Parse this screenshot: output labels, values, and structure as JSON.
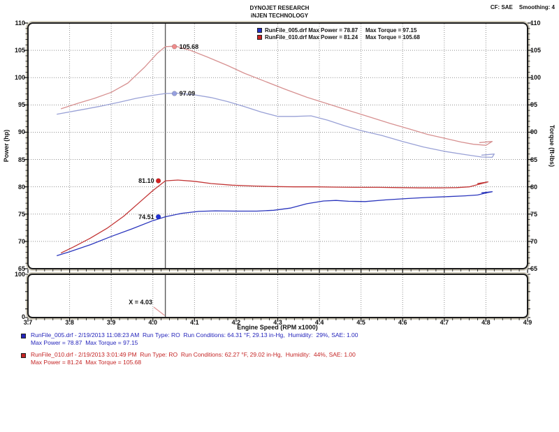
{
  "header": {
    "title_line1": "DYNOJET RESEARCH",
    "title_line2": "iNJEN TECHNOLOGY",
    "cf": "CF: SAE",
    "smoothing": "Smoothing: 4"
  },
  "legend": {
    "rows": [
      {
        "file": "RunFile_005.drf",
        "label_left": "RunFile_005.drf Max Power = 78.87",
        "label_right": "Max Torque = 97.15",
        "color": "#2230c8"
      },
      {
        "file": "RunFile_010.drf",
        "label_left": "RunFile_010.drf Max Power = 81.24",
        "label_right": "Max Torque = 105.68",
        "color": "#cc2222"
      }
    ]
  },
  "axes": {
    "power_label": "Power (hp)",
    "torque_label": "Torque (ft-lbs)",
    "x_label": "Engine Speed (RPM x1000)",
    "y_tick_labels": [
      "110",
      "105",
      "100",
      "95",
      "90",
      "85",
      "80",
      "75",
      "70",
      "65"
    ],
    "x_tick_labels": [
      "3.7",
      "3.8",
      "3.9",
      "4.0",
      "4.1",
      "4.2",
      "4.3",
      "4.4",
      "4.5",
      "4.6",
      "4.7",
      "4.8",
      "4.9"
    ],
    "y_range": [
      65,
      110
    ],
    "x_range": [
      3.7,
      4.9
    ]
  },
  "panel": {
    "top_label": "100",
    "bottom_label": "0",
    "y_range": [
      0,
      100
    ]
  },
  "cursor": {
    "x": 4.03,
    "label": "X = 4.03",
    "line_color": "#5a5a5a",
    "callout_color": "#e09595",
    "readouts": [
      {
        "value": "105.68",
        "value_num": 105.68,
        "side": "right",
        "dot_color": "#ee8b8b"
      },
      {
        "value": "97.09",
        "value_num": 97.09,
        "side": "right",
        "dot_color": "#96a0e0"
      },
      {
        "value": "81.10",
        "value_num": 81.1,
        "side": "left",
        "dot_color": "#d62020"
      },
      {
        "value": "74.51",
        "value_num": 74.51,
        "side": "left",
        "dot_color": "#2030d6"
      }
    ]
  },
  "chart_data": {
    "type": "line",
    "title": "DYNOJET RESEARCH / iNJEN TECHNOLOGY",
    "xlabel": "Engine Speed (RPM x1000)",
    "ylabel_left": "Power (hp)",
    "ylabel_right": "Torque (ft-lbs)",
    "xlim": [
      3.7,
      4.9
    ],
    "ylim": [
      65,
      110
    ],
    "grid": true,
    "legend_position": "top-center",
    "series": [
      {
        "name": "RunFile_005.drf Torque",
        "axis": "torque",
        "color": "#99a1d6",
        "max": 97.15,
        "points": [
          [
            3.77,
            93.3
          ],
          [
            3.82,
            94.0
          ],
          [
            3.87,
            94.7
          ],
          [
            3.92,
            95.5
          ],
          [
            3.96,
            96.2
          ],
          [
            4.0,
            96.75
          ],
          [
            4.03,
            97.09
          ],
          [
            4.06,
            97.15
          ],
          [
            4.1,
            96.85
          ],
          [
            4.14,
            96.35
          ],
          [
            4.18,
            95.6
          ],
          [
            4.22,
            94.7
          ],
          [
            4.26,
            93.7
          ],
          [
            4.3,
            92.9
          ],
          [
            4.34,
            92.9
          ],
          [
            4.38,
            93.0
          ],
          [
            4.42,
            92.2
          ],
          [
            4.46,
            91.2
          ],
          [
            4.5,
            90.3
          ],
          [
            4.55,
            89.4
          ],
          [
            4.6,
            88.3
          ],
          [
            4.65,
            87.3
          ],
          [
            4.7,
            86.5
          ],
          [
            4.75,
            85.9
          ],
          [
            4.79,
            85.45
          ],
          [
            4.815,
            85.4
          ],
          [
            4.82,
            86.0
          ],
          [
            4.79,
            85.8
          ]
        ]
      },
      {
        "name": "RunFile_010.drf Torque",
        "axis": "torque",
        "color": "#d79191",
        "max": 105.68,
        "points": [
          [
            3.78,
            94.3
          ],
          [
            3.82,
            95.3
          ],
          [
            3.86,
            96.2
          ],
          [
            3.9,
            97.3
          ],
          [
            3.94,
            99.0
          ],
          [
            3.98,
            101.9
          ],
          [
            4.01,
            104.4
          ],
          [
            4.03,
            105.68
          ],
          [
            4.055,
            105.75
          ],
          [
            4.09,
            105.0
          ],
          [
            4.13,
            103.8
          ],
          [
            4.18,
            102.2
          ],
          [
            4.22,
            100.8
          ],
          [
            4.27,
            99.3
          ],
          [
            4.32,
            97.8
          ],
          [
            4.37,
            96.4
          ],
          [
            4.42,
            95.2
          ],
          [
            4.47,
            94.0
          ],
          [
            4.52,
            92.8
          ],
          [
            4.57,
            91.6
          ],
          [
            4.62,
            90.5
          ],
          [
            4.66,
            89.6
          ],
          [
            4.7,
            88.9
          ],
          [
            4.74,
            88.2
          ],
          [
            4.77,
            87.8
          ],
          [
            4.8,
            87.6
          ],
          [
            4.815,
            88.3
          ],
          [
            4.785,
            88.1
          ]
        ]
      },
      {
        "name": "RunFile_005.drf Power",
        "axis": "power",
        "color": "#2a35bd",
        "max": 78.87,
        "points": [
          [
            3.77,
            67.4
          ],
          [
            3.8,
            68.1
          ],
          [
            3.85,
            69.4
          ],
          [
            3.9,
            70.9
          ],
          [
            3.95,
            72.3
          ],
          [
            4.0,
            73.8
          ],
          [
            4.03,
            74.51
          ],
          [
            4.07,
            75.15
          ],
          [
            4.11,
            75.5
          ],
          [
            4.15,
            75.6
          ],
          [
            4.2,
            75.55
          ],
          [
            4.25,
            75.55
          ],
          [
            4.29,
            75.7
          ],
          [
            4.33,
            76.1
          ],
          [
            4.37,
            76.9
          ],
          [
            4.41,
            77.4
          ],
          [
            4.44,
            77.5
          ],
          [
            4.47,
            77.35
          ],
          [
            4.51,
            77.3
          ],
          [
            4.56,
            77.6
          ],
          [
            4.61,
            77.85
          ],
          [
            4.66,
            78.05
          ],
          [
            4.71,
            78.2
          ],
          [
            4.75,
            78.35
          ],
          [
            4.78,
            78.5
          ],
          [
            4.8,
            78.87
          ],
          [
            4.815,
            79.1
          ],
          [
            4.79,
            78.9
          ]
        ]
      },
      {
        "name": "RunFile_010.drf Power",
        "axis": "power",
        "color": "#c23434",
        "max": 81.24,
        "points": [
          [
            3.78,
            67.9
          ],
          [
            3.81,
            69.0
          ],
          [
            3.85,
            70.6
          ],
          [
            3.89,
            72.4
          ],
          [
            3.93,
            74.6
          ],
          [
            3.97,
            77.3
          ],
          [
            4.0,
            79.3
          ],
          [
            4.03,
            81.1
          ],
          [
            4.06,
            81.24
          ],
          [
            4.1,
            81.0
          ],
          [
            4.14,
            80.6
          ],
          [
            4.19,
            80.3
          ],
          [
            4.24,
            80.15
          ],
          [
            4.29,
            80.05
          ],
          [
            4.34,
            80.0
          ],
          [
            4.39,
            80.0
          ],
          [
            4.44,
            79.95
          ],
          [
            4.49,
            79.9
          ],
          [
            4.54,
            79.9
          ],
          [
            4.59,
            79.85
          ],
          [
            4.64,
            79.8
          ],
          [
            4.69,
            79.8
          ],
          [
            4.73,
            79.85
          ],
          [
            4.76,
            80.0
          ],
          [
            4.785,
            80.5
          ],
          [
            4.805,
            80.9
          ],
          [
            4.78,
            80.6
          ]
        ]
      }
    ]
  },
  "footer": {
    "runs": [
      {
        "color": "#2424bb",
        "line1": "RunFile_005.drf - 2/19/2013 11:08:23 AM  Run Type: RO  Run Conditions: 64.31 °F, 29.13 in-Hg,  Humidity:  29%, SAE: 1.00",
        "line2": "Max Power = 78.87  Max Torque = 97.15"
      },
      {
        "color": "#c42424",
        "line1": "RunFile_010.drf - 2/19/2013 3:01:49 PM  Run Type: RO  Run Conditions: 62.27 °F, 29.02 in-Hg,  Humidity:  44%, SAE: 1.00",
        "line2": "Max Power = 81.24  Max Torque = 105.68"
      }
    ]
  }
}
